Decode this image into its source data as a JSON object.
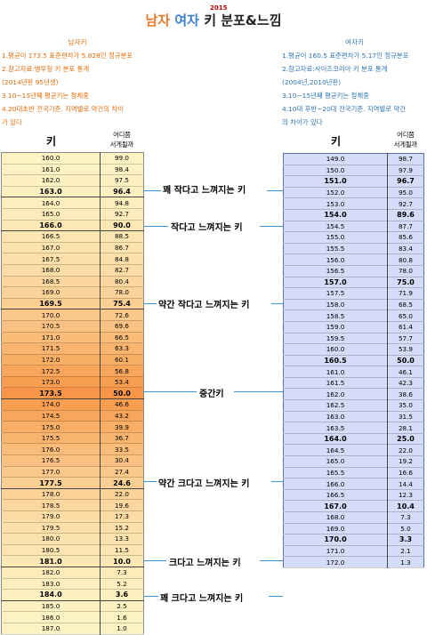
{
  "title": {
    "men": "남자",
    "women": "여자",
    "rest": "키 분포&느낌",
    "year": "2015"
  },
  "male_notes": {
    "heading": "남자키",
    "lines": [
      "1.평균이 173.5 표준편차가 5.828인 정규분포",
      "2.참고자료:병무청 키 분포 통계",
      "(2014년판 95년생)",
      "3.10~15년째 평균키는 정체중",
      "4.20대초반 전국기준. 지역별로 약간의 차이",
      "가 있다"
    ]
  },
  "female_notes": {
    "heading": "여자키",
    "lines": [
      "1.평균이 160.5 표준편차가 5.17인 정규분포",
      "2.참고자료:사이즈코리아 키 분포 통계",
      "(2004년,2010년판)",
      "3.10~15년째 평균키는 정체중",
      "4.10대 후반~20대 전국기준. 지역별로 약간",
      "의 차이가 있다"
    ]
  },
  "male_headers": {
    "height": "키",
    "percent_line1": "어디쯤",
    "percent_line2": "서게될까"
  },
  "female_headers": {
    "height": "키",
    "percent_line1": "어디쯤",
    "percent_line2": "서게될까"
  },
  "male_rows": [
    {
      "h": "160.0",
      "p": "99.0"
    },
    {
      "h": "161.0",
      "p": "98.4"
    },
    {
      "h": "162.0",
      "p": "97.5"
    },
    {
      "h": "163.0",
      "p": "96.4",
      "hl": true
    },
    {
      "h": "164.0",
      "p": "94.8"
    },
    {
      "h": "165.0",
      "p": "92.7"
    },
    {
      "h": "166.0",
      "p": "90.0",
      "hl": true
    },
    {
      "h": "166.5",
      "p": "88.5"
    },
    {
      "h": "167.0",
      "p": "86.7"
    },
    {
      "h": "167.5",
      "p": "84.8"
    },
    {
      "h": "168.0",
      "p": "82.7"
    },
    {
      "h": "168.5",
      "p": "80.4"
    },
    {
      "h": "169.0",
      "p": "78.0"
    },
    {
      "h": "169.5",
      "p": "75.4",
      "hl": true
    },
    {
      "h": "170.0",
      "p": "72.6"
    },
    {
      "h": "170.5",
      "p": "69.6"
    },
    {
      "h": "171.0",
      "p": "66.5"
    },
    {
      "h": "171.5",
      "p": "63.3"
    },
    {
      "h": "172.0",
      "p": "60.1"
    },
    {
      "h": "172.5",
      "p": "56.8"
    },
    {
      "h": "173.0",
      "p": "53.4"
    },
    {
      "h": "173.5",
      "p": "50.0",
      "hl": true
    },
    {
      "h": "174.0",
      "p": "46.6"
    },
    {
      "h": "174.5",
      "p": "43.2"
    },
    {
      "h": "175.0",
      "p": "39.9"
    },
    {
      "h": "175.5",
      "p": "36.7"
    },
    {
      "h": "176.0",
      "p": "33.5"
    },
    {
      "h": "176.5",
      "p": "30.4"
    },
    {
      "h": "177.0",
      "p": "27.4"
    },
    {
      "h": "177.5",
      "p": "24.6",
      "hl": true
    },
    {
      "h": "178.0",
      "p": "22.0"
    },
    {
      "h": "178.5",
      "p": "19.6"
    },
    {
      "h": "179.0",
      "p": "17.3"
    },
    {
      "h": "179.5",
      "p": "15.2"
    },
    {
      "h": "180.0",
      "p": "13.3"
    },
    {
      "h": "180.5",
      "p": "11.5"
    },
    {
      "h": "181.0",
      "p": "10.0",
      "hl": true
    },
    {
      "h": "182.0",
      "p": "7.3"
    },
    {
      "h": "183.0",
      "p": "5.2"
    },
    {
      "h": "184.0",
      "p": "3.6",
      "hl": true
    },
    {
      "h": "185.0",
      "p": "2.5"
    },
    {
      "h": "186.0",
      "p": "1.6"
    },
    {
      "h": "187.0",
      "p": "1.0"
    }
  ],
  "female_rows": [
    {
      "h": "149.0",
      "p": "98.7"
    },
    {
      "h": "150.0",
      "p": "97.9"
    },
    {
      "h": "151.0",
      "p": "96.7",
      "hl": true
    },
    {
      "h": "152.0",
      "p": "95.0"
    },
    {
      "h": "153.0",
      "p": "92.7"
    },
    {
      "h": "154.0",
      "p": "89.6",
      "hl": true
    },
    {
      "h": "154.5",
      "p": "87.7"
    },
    {
      "h": "155.0",
      "p": "85.6"
    },
    {
      "h": "155.5",
      "p": "83.4"
    },
    {
      "h": "156.0",
      "p": "80.8"
    },
    {
      "h": "156.5",
      "p": "78.0"
    },
    {
      "h": "157.0",
      "p": "75.0",
      "hl": true
    },
    {
      "h": "157.5",
      "p": "71.9"
    },
    {
      "h": "158.0",
      "p": "68.5"
    },
    {
      "h": "158.5",
      "p": "65.0"
    },
    {
      "h": "159.0",
      "p": "61.4"
    },
    {
      "h": "159.5",
      "p": "57.7"
    },
    {
      "h": "160.0",
      "p": "53.9"
    },
    {
      "h": "160.5",
      "p": "50.0",
      "hl": true
    },
    {
      "h": "161.0",
      "p": "46.1"
    },
    {
      "h": "161.5",
      "p": "42.3"
    },
    {
      "h": "162.0",
      "p": "38.6"
    },
    {
      "h": "162.5",
      "p": "35.0"
    },
    {
      "h": "163.0",
      "p": "31.5"
    },
    {
      "h": "163.5",
      "p": "28.1"
    },
    {
      "h": "164.0",
      "p": "25.0",
      "hl": true
    },
    {
      "h": "164.5",
      "p": "22.0"
    },
    {
      "h": "165.0",
      "p": "19.2"
    },
    {
      "h": "165.5",
      "p": "16.6"
    },
    {
      "h": "166.0",
      "p": "14.4"
    },
    {
      "h": "166.5",
      "p": "12.3"
    },
    {
      "h": "167.0",
      "p": "10.4",
      "hl": true
    },
    {
      "h": "168.0",
      "p": "7.3"
    },
    {
      "h": "169.0",
      "p": "5.0"
    },
    {
      "h": "170.0",
      "p": "3.3",
      "hl": true
    },
    {
      "h": "171.0",
      "p": "2.1"
    },
    {
      "h": "172.0",
      "p": "1.3"
    }
  ],
  "labels": [
    "꽤 작다고 느껴지는 키",
    "작다고 느껴지는 키",
    "약간 작다고 느껴지는 키",
    "중간키",
    "약간 크다고 느껴지는 키",
    "크다고 느껴지는 키",
    "꽤 크다고 느껴지는 키"
  ],
  "colors": {
    "male_gradient_light": "#fdf3c4",
    "male_gradient_peak": "#f79646",
    "female_fill": "#d5dcf8",
    "connector_line": "#3a96d8"
  }
}
